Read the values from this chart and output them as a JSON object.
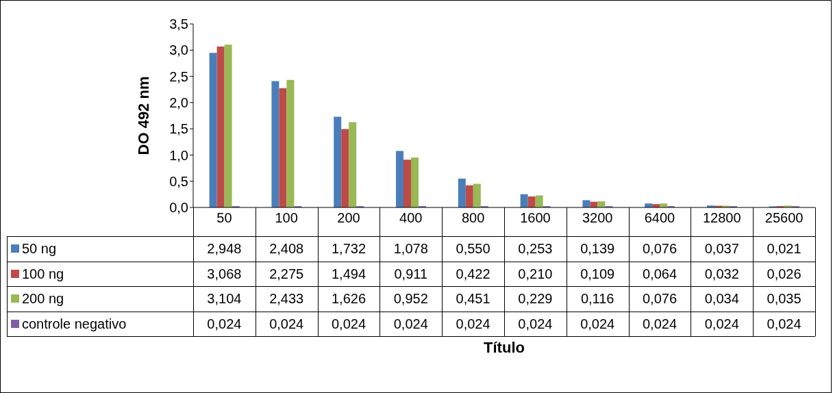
{
  "chart_data": {
    "type": "bar",
    "annotations": [
      "Título"
    ],
    "ylabel": "DO 492 nm",
    "categories": [
      "50",
      "100",
      "200",
      "400",
      "800",
      "1600",
      "3200",
      "6400",
      "12800",
      "25600"
    ],
    "series": [
      {
        "name": "50 ng",
        "color": "#4a7ebb",
        "values": [
          2.948,
          2.408,
          1.732,
          1.078,
          0.55,
          0.253,
          0.139,
          0.076,
          0.037,
          0.021
        ],
        "value_labels": [
          "2,948",
          "2,408",
          "1,732",
          "1,078",
          "0,550",
          "0,253",
          "0,139",
          "0,076",
          "0,037",
          "0,021"
        ]
      },
      {
        "name": "100 ng",
        "color": "#be4b48",
        "values": [
          3.068,
          2.275,
          1.494,
          0.911,
          0.422,
          0.21,
          0.109,
          0.064,
          0.032,
          0.026
        ],
        "value_labels": [
          "3,068",
          "2,275",
          "1,494",
          "0,911",
          "0,422",
          "0,210",
          "0,109",
          "0,064",
          "0,032",
          "0,026"
        ]
      },
      {
        "name": "200 ng",
        "color": "#98b954",
        "values": [
          3.104,
          2.433,
          1.626,
          0.952,
          0.451,
          0.229,
          0.116,
          0.076,
          0.034,
          0.035
        ],
        "value_labels": [
          "3,104",
          "2,433",
          "1,626",
          "0,952",
          "0,451",
          "0,229",
          "0,116",
          "0,076",
          "0,034",
          "0,035"
        ]
      },
      {
        "name": "controle negativo",
        "color": "#7d60a0",
        "values": [
          0.024,
          0.024,
          0.024,
          0.024,
          0.024,
          0.024,
          0.024,
          0.024,
          0.024,
          0.024
        ],
        "value_labels": [
          "0,024",
          "0,024",
          "0,024",
          "0,024",
          "0,024",
          "0,024",
          "0,024",
          "0,024",
          "0,024",
          "0,024"
        ]
      }
    ],
    "ylim": [
      0,
      3.5
    ],
    "yticks": [
      {
        "value": 0,
        "label": "0,0"
      },
      {
        "value": 0.5,
        "label": "0,5"
      },
      {
        "value": 1,
        "label": "1,0"
      },
      {
        "value": 1.5,
        "label": "1,5"
      },
      {
        "value": 2,
        "label": "2,0"
      },
      {
        "value": 2.5,
        "label": "2,5"
      },
      {
        "value": 3,
        "label": "3,0"
      },
      {
        "value": 3.5,
        "label": "3,5"
      }
    ],
    "legend": "bottom"
  }
}
